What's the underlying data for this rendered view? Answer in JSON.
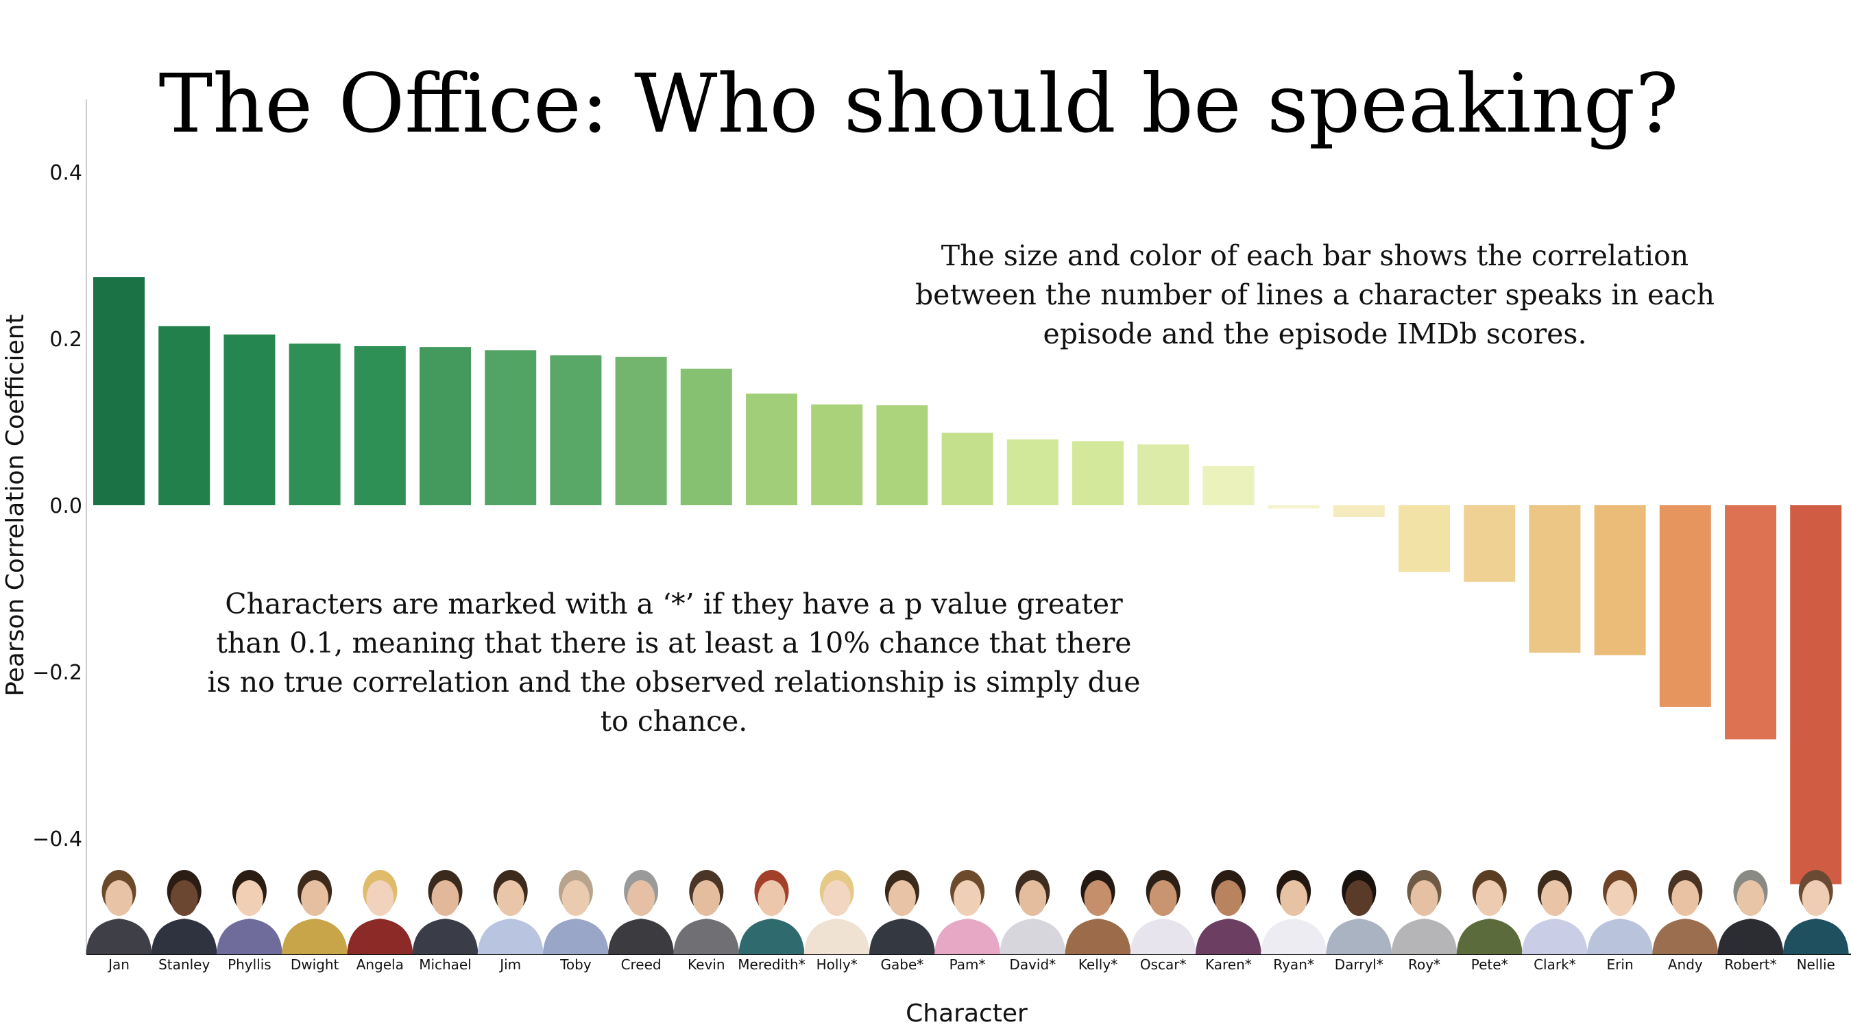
{
  "chart_data": {
    "type": "bar",
    "title": "The Office: Who should be speaking?",
    "xlabel": "Character",
    "ylabel": "Pearson Correlation Coefficient",
    "ylim": [
      -0.54,
      0.49
    ],
    "yticks": [
      "0.4",
      "0.2",
      "0.0",
      "−0.2",
      "−0.4"
    ],
    "ytick_values": [
      0.4,
      0.2,
      0.0,
      -0.2,
      -0.4
    ],
    "grid": false,
    "categories": [
      "Jan",
      "Stanley",
      "Phyllis",
      "Dwight",
      "Angela",
      "Michael",
      "Jim",
      "Toby",
      "Creed",
      "Kevin",
      "Meredith*",
      "Holly*",
      "Gabe*",
      "Pam*",
      "David*",
      "Kelly*",
      "Oscar*",
      "Karen*",
      "Ryan*",
      "Darryl*",
      "Roy*",
      "Pete*",
      "Clark*",
      "Erin",
      "Andy",
      "Robert*",
      "Nellie"
    ],
    "values": [
      0.274,
      0.215,
      0.205,
      0.194,
      0.191,
      0.19,
      0.186,
      0.18,
      0.178,
      0.164,
      0.134,
      0.121,
      0.12,
      0.087,
      0.079,
      0.077,
      0.073,
      0.047,
      -0.004,
      -0.014,
      -0.08,
      -0.092,
      -0.177,
      -0.18,
      -0.242,
      -0.281,
      -0.455
    ],
    "colors": [
      "#1a7245",
      "#22804a",
      "#268650",
      "#2e9055",
      "#2e9055",
      "#439a5c",
      "#51a463",
      "#5aa867",
      "#73b46f",
      "#86c071",
      "#a0ce79",
      "#a9d27a",
      "#acd47d",
      "#c4e08d",
      "#d1e79a",
      "#d4e89c",
      "#dceba8",
      "#ecf2bc",
      "#f6f4cf",
      "#f5ebbe",
      "#f3e2a6",
      "#efd293",
      "#ecc684",
      "#ebbb78",
      "#e6955f",
      "#dd7252",
      "#d05d43"
    ],
    "annotations": [
      {
        "lines": [
          "The size and color of each bar shows the correlation",
          "between the number of lines a character speaks in each",
          "episode and the episode IMDb scores."
        ]
      },
      {
        "lines": [
          "Characters are marked with a ‘*’ if they have a p value greater",
          "than 0.1, meaning that there is at least a 10% chance that there",
          "is no true correlation and the observed relationship is simply due",
          "to chance."
        ]
      }
    ]
  }
}
